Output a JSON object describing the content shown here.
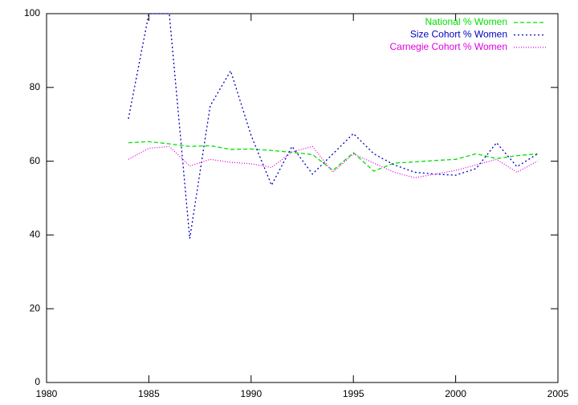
{
  "chart_data": {
    "type": "line",
    "x": [
      1984,
      1985,
      1986,
      1987,
      1988,
      1989,
      1990,
      1991,
      1992,
      1993,
      1994,
      1995,
      1996,
      1997,
      1998,
      1999,
      2000,
      2001,
      2002,
      2003,
      2004
    ],
    "series": [
      {
        "name": "National % Women",
        "color": "#00e000",
        "values": [
          65,
          65.3,
          64.7,
          64,
          64.2,
          63.2,
          63.3,
          62.9,
          62.4,
          61.8,
          57.5,
          62.3,
          57.3,
          59.5,
          59.8,
          60.2,
          60.5,
          62,
          60.7,
          61.5,
          62
        ]
      },
      {
        "name": "Size Cohort % Women",
        "color": "#0000c0",
        "values": [
          71.5,
          100,
          100,
          39,
          75,
          84.5,
          67,
          53.5,
          64,
          56.5,
          62,
          67.5,
          62,
          59,
          57,
          56.5,
          56.2,
          58,
          65,
          58.5,
          62
        ]
      },
      {
        "name": "Carnegie Cohort % Women",
        "color": "#e000e0",
        "values": [
          60.5,
          63.5,
          64,
          58.7,
          60.5,
          59.7,
          59.3,
          58.3,
          62.5,
          64,
          57,
          62,
          59.5,
          57,
          55.5,
          56.5,
          57.5,
          59,
          60.5,
          57,
          60
        ]
      }
    ],
    "xlim": [
      1980,
      2005
    ],
    "xticks": [
      1980,
      1985,
      1990,
      1995,
      2000,
      2005
    ],
    "ylim": [
      0,
      100
    ],
    "yticks": [
      0,
      20,
      40,
      60,
      80,
      100
    ],
    "legend": "top-right"
  }
}
